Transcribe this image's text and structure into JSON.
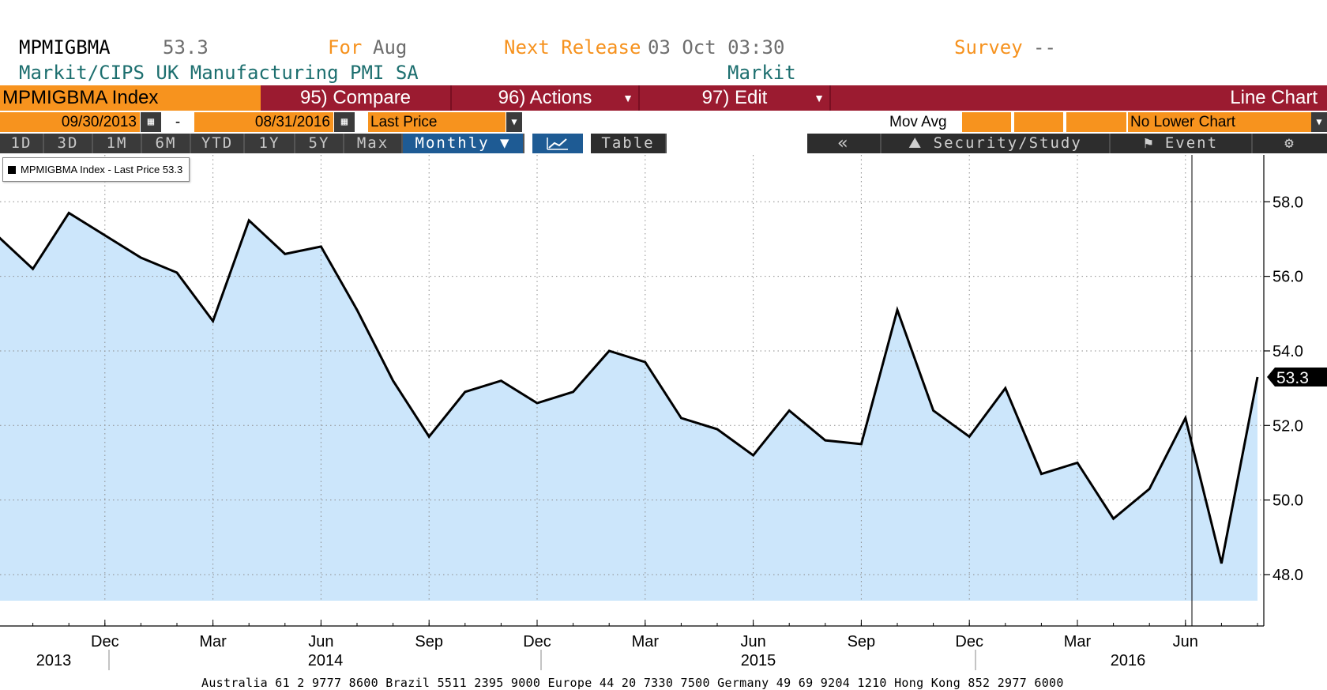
{
  "header": {
    "ticker": "MPMIGBMA",
    "last_value": "53.3",
    "for_label": "For",
    "for_value": "Aug",
    "next_release_label": "Next Release",
    "next_release_value": "03 Oct 03:30",
    "survey_label": "Survey",
    "survey_value": "--",
    "description": "Markit/CIPS UK Manufacturing PMI SA",
    "source": "Markit"
  },
  "toolbar": {
    "security": "MPMIGBMA Index",
    "compare": "95) Compare",
    "actions": "96) Actions",
    "edit": "97) Edit",
    "chart_type": "Line Chart"
  },
  "range": {
    "start_date": "09/30/2013",
    "separator": "-",
    "end_date": "08/31/2016",
    "field": "Last Price",
    "mov_avg": "Mov Avg",
    "lower_chart": "No Lower Chart"
  },
  "periods": {
    "items": [
      "1D",
      "3D",
      "1M",
      "6M",
      "YTD",
      "1Y",
      "5Y",
      "Max"
    ],
    "selected": "Monthly ▼",
    "table": "Table",
    "back": "«",
    "security_study": "Security/Study",
    "event": "Event"
  },
  "legend": {
    "label": "MPMIGBMA Index - Last Price 53.3"
  },
  "footer": {
    "text": "Australia 61 2 9777 8600 Brazil 5511 2395 9000 Europe 44 20 7330 7500 Germany 49 69 9204 1210 Hong Kong 852 2977 6000"
  },
  "colors": {
    "accent_red": "#9b1b30",
    "accent_orange": "#f7931e",
    "area_fill": "#cce6fb",
    "line": "#000000",
    "selected_blue": "#1e5b94"
  },
  "chart_data": {
    "type": "area",
    "series": [
      {
        "name": "MPMIGBMA Index - Last Price",
        "x": [
          "2013-09",
          "2013-10",
          "2013-11",
          "2013-12",
          "2014-01",
          "2014-02",
          "2014-03",
          "2014-04",
          "2014-05",
          "2014-06",
          "2014-07",
          "2014-08",
          "2014-09",
          "2014-10",
          "2014-11",
          "2014-12",
          "2015-01",
          "2015-02",
          "2015-03",
          "2015-04",
          "2015-05",
          "2015-06",
          "2015-07",
          "2015-08",
          "2015-09",
          "2015-10",
          "2015-11",
          "2015-12",
          "2016-01",
          "2016-02",
          "2016-03",
          "2016-04",
          "2016-05",
          "2016-06",
          "2016-07",
          "2016-08"
        ],
        "values": [
          57.1,
          56.2,
          57.7,
          57.1,
          56.5,
          56.1,
          54.8,
          57.5,
          56.6,
          56.8,
          55.1,
          53.2,
          51.7,
          52.9,
          53.2,
          52.6,
          52.9,
          54.0,
          53.7,
          52.2,
          51.9,
          51.2,
          52.4,
          51.6,
          51.5,
          55.1,
          52.4,
          51.7,
          53.0,
          50.7,
          51.0,
          49.5,
          50.3,
          52.2,
          48.3,
          53.3
        ]
      }
    ],
    "ylim": [
      47.3,
      58.6
    ],
    "y_ticks": [
      "58.0",
      "56.0",
      "54.0",
      "52.0",
      "50.0",
      "48.0"
    ],
    "x_month_labels": [
      "Dec",
      "Mar",
      "Jun",
      "Sep",
      "Dec",
      "Mar",
      "Jun",
      "Sep",
      "Dec",
      "Mar",
      "Jun"
    ],
    "x_year_labels": [
      "2013",
      "2014",
      "2015",
      "2016"
    ],
    "last_value_label": "53.3",
    "grid": true,
    "legend_position": "top-left",
    "xlabel": "",
    "ylabel": ""
  }
}
